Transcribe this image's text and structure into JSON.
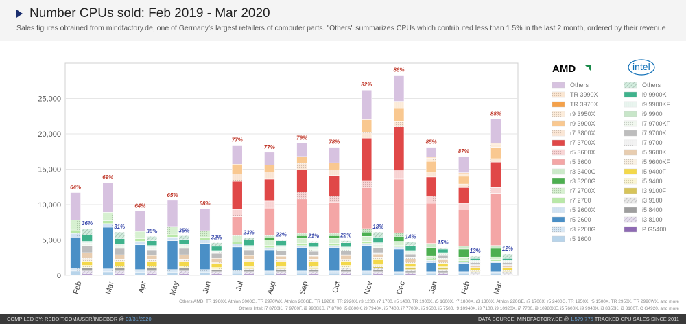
{
  "header": {
    "title": "Number CPUs sold: Feb 2019 - Mar 2020",
    "subtitle": "Sales figures obtained from mindfactory.de, one of Germany's largest retailers of computer parts. \"Others\" summarizes CPUs which contributed less than 1.5% in the last 2 month, ordered by their revenue"
  },
  "colors": {
    "amd_share": "#c0392b",
    "intel_share": "#3949ab"
  },
  "chart_data": {
    "type": "bar",
    "stacked": true,
    "grouped": [
      "AMD",
      "Intel"
    ],
    "ylim": [
      0,
      30000
    ],
    "yticks": [
      0,
      5000,
      10000,
      15000,
      20000,
      25000
    ],
    "ytick_labels": [
      "0",
      "5,000",
      "10,000",
      "15,000",
      "20,000",
      "25,000"
    ],
    "grid": true,
    "categories": [
      "Feb",
      "Mar",
      "Apr",
      "May",
      "Jun",
      "Jul",
      "Aug",
      "Sep",
      "Oct",
      "Nov",
      "Dec",
      "Jan",
      "Feb",
      "Mar"
    ],
    "amd_totals": [
      11700,
      13100,
      9500,
      10600,
      9400,
      18400,
      17100,
      18700,
      18100,
      25900,
      28300,
      22100,
      18100,
      21300
    ],
    "intel_totals": [
      6300,
      5900,
      5200,
      5600,
      4400,
      5300,
      5000,
      4800,
      4900,
      5700,
      4600,
      3800,
      2700,
      2900
    ],
    "amd_share_labels": [
      "64%",
      "69%",
      "64%",
      "65%",
      "68%",
      "77%",
      "77%",
      "79%",
      "78%",
      "82%",
      "86%",
      "85%",
      "87%",
      "88%"
    ],
    "intel_share_labels": [
      "36%",
      "31%",
      "36%",
      "35%",
      "32%",
      "23%",
      "23%",
      "21%",
      "22%",
      "18%",
      "14%",
      "15%",
      "13%",
      "12%"
    ],
    "amd_series": [
      {
        "name": "r5 1600",
        "color": "#b8d4ea",
        "pattern": "solid",
        "values": [
          600,
          500,
          400,
          400,
          400,
          300,
          300,
          300,
          300,
          300,
          300,
          300,
          300,
          300
        ]
      },
      {
        "name": "r3 2200G",
        "color": "#a8cbe8",
        "pattern": "dots",
        "values": [
          400,
          400,
          400,
          400,
          400,
          400,
          300,
          300,
          300,
          300,
          200,
          200,
          200,
          200
        ]
      },
      {
        "name": "r5 2600",
        "color": "#4a8fc6",
        "pattern": "solid",
        "values": [
          4300,
          5900,
          3500,
          4100,
          3700,
          3300,
          3000,
          3300,
          3300,
          3600,
          3200,
          1300,
          1200,
          1300
        ]
      },
      {
        "name": "r5 2600X",
        "color": "#9bc1e4",
        "pattern": "dots",
        "values": [
          600,
          500,
          500,
          500,
          500,
          400,
          300,
          300,
          300,
          300,
          300,
          300,
          200,
          200
        ]
      },
      {
        "name": "r7 2700",
        "color": "#b9e8a8",
        "pattern": "solid",
        "values": [
          500,
          400,
          400,
          400,
          400,
          300,
          300,
          300,
          300,
          300,
          200,
          200,
          200,
          200
        ]
      },
      {
        "name": "r7 2700X",
        "color": "#a6e09a",
        "pattern": "dots",
        "values": [
          1400,
          1200,
          1000,
          1100,
          900,
          900,
          800,
          700,
          700,
          700,
          600,
          400,
          400,
          400
        ]
      },
      {
        "name": "r3 3200G",
        "color": "#4caf50",
        "pattern": "solid",
        "values": [
          0,
          0,
          0,
          0,
          0,
          0,
          300,
          400,
          400,
          600,
          700,
          1200,
          1200,
          1200
        ]
      },
      {
        "name": "r3 3400G",
        "color": "#8fd18a",
        "pattern": "dots",
        "values": [
          0,
          0,
          0,
          0,
          0,
          0,
          300,
          300,
          300,
          500,
          500,
          600,
          400,
          400
        ]
      },
      {
        "name": "r5 3600",
        "color": "#f4a6a6",
        "pattern": "solid",
        "values": [
          0,
          0,
          0,
          0,
          0,
          2700,
          3900,
          4900,
          4400,
          5800,
          7600,
          5700,
          5200,
          7400
        ]
      },
      {
        "name": "r5 3600X",
        "color": "#f2a1a1",
        "pattern": "dots",
        "values": [
          0,
          0,
          0,
          0,
          0,
          1000,
          1000,
          1000,
          900,
          1000,
          1200,
          1000,
          900,
          800
        ]
      },
      {
        "name": "r7 3700X",
        "color": "#e04848",
        "pattern": "solid",
        "values": [
          0,
          0,
          0,
          0,
          0,
          4000,
          3100,
          3100,
          2900,
          6000,
          6200,
          2700,
          2200,
          3600
        ]
      },
      {
        "name": "r7 3800X",
        "color": "#f7c9a4",
        "pattern": "dots",
        "values": [
          0,
          0,
          0,
          0,
          0,
          1000,
          1000,
          900,
          800,
          800,
          800,
          600,
          500,
          500
        ]
      },
      {
        "name": "r9 3900X",
        "color": "#f9c890",
        "pattern": "solid",
        "values": [
          0,
          0,
          0,
          0,
          0,
          1400,
          1000,
          1000,
          1000,
          1800,
          1800,
          1600,
          1100,
          1600
        ]
      },
      {
        "name": "r9 3950X",
        "color": "#fad6b0",
        "pattern": "dots",
        "values": [
          0,
          0,
          0,
          0,
          0,
          0,
          0,
          0,
          0,
          0,
          900,
          500,
          400,
          400
        ]
      },
      {
        "name": "TR 3970X",
        "color": "#f4a14a",
        "pattern": "solid",
        "values": [
          0,
          0,
          0,
          0,
          0,
          0,
          0,
          0,
          0,
          0,
          100,
          100,
          100,
          100
        ]
      },
      {
        "name": "TR 3990X",
        "color": "#f8c99c",
        "pattern": "dots",
        "values": [
          0,
          0,
          0,
          0,
          0,
          0,
          0,
          0,
          0,
          0,
          0,
          0,
          0,
          100
        ]
      },
      {
        "name": "Others",
        "color": "#d7c2e0",
        "pattern": "solid",
        "values": [
          3900,
          4200,
          2900,
          3700,
          3100,
          2700,
          1800,
          1900,
          2200,
          4200,
          3700,
          1400,
          2300,
          3400
        ]
      }
    ],
    "intel_series": [
      {
        "name": "P G5400",
        "color": "#8e6ab3",
        "pattern": "solid",
        "values": [
          200,
          200,
          200,
          200,
          200,
          200,
          200,
          200,
          200,
          200,
          200,
          200,
          100,
          100
        ]
      },
      {
        "name": "i3 8100",
        "color": "#c7b7da",
        "pattern": "hatch",
        "values": [
          400,
          400,
          400,
          400,
          300,
          300,
          300,
          300,
          300,
          300,
          200,
          200,
          100,
          100
        ]
      },
      {
        "name": "i5 8400",
        "color": "#9e9e9e",
        "pattern": "solid",
        "values": [
          500,
          400,
          400,
          400,
          300,
          300,
          300,
          300,
          300,
          300,
          200,
          200,
          100,
          100
        ]
      },
      {
        "name": "i3 9100",
        "color": "#cfcfcf",
        "pattern": "hatch",
        "values": [
          0,
          0,
          0,
          0,
          0,
          100,
          100,
          100,
          200,
          200,
          200,
          200,
          200,
          200
        ]
      },
      {
        "name": "i3 9100F",
        "color": "#d7c45a",
        "pattern": "solid",
        "values": [
          0,
          0,
          0,
          0,
          0,
          100,
          100,
          100,
          100,
          200,
          200,
          200,
          100,
          100
        ]
      },
      {
        "name": "i5 9400",
        "color": "#f5e9a0",
        "pattern": "dots",
        "values": [
          300,
          300,
          300,
          300,
          300,
          300,
          300,
          300,
          300,
          300,
          200,
          200,
          100,
          100
        ]
      },
      {
        "name": "i5 9400F",
        "color": "#f3d84a",
        "pattern": "solid",
        "values": [
          600,
          600,
          600,
          600,
          500,
          600,
          600,
          600,
          600,
          700,
          500,
          500,
          300,
          300
        ]
      },
      {
        "name": "i5 9600KF",
        "color": "#f1dfc4",
        "pattern": "dots",
        "values": [
          400,
          300,
          300,
          300,
          300,
          300,
          300,
          300,
          300,
          300,
          200,
          200,
          100,
          100
        ]
      },
      {
        "name": "i5 9600K",
        "color": "#e8cdb0",
        "pattern": "solid",
        "values": [
          800,
          700,
          600,
          700,
          500,
          600,
          500,
          500,
          500,
          500,
          400,
          300,
          200,
          200
        ]
      },
      {
        "name": "i7 9700",
        "color": "#e5e5e5",
        "pattern": "dots",
        "values": [
          0,
          0,
          0,
          0,
          0,
          0,
          100,
          100,
          100,
          200,
          200,
          200,
          200,
          200
        ]
      },
      {
        "name": "i7 9700K",
        "color": "#bdbdbd",
        "pattern": "solid",
        "values": [
          1000,
          900,
          800,
          900,
          700,
          800,
          700,
          600,
          600,
          700,
          500,
          400,
          300,
          300
        ]
      },
      {
        "name": "i7 9700KF",
        "color": "#e0f0dc",
        "pattern": "dots",
        "values": [
          300,
          300,
          300,
          300,
          200,
          300,
          300,
          300,
          200,
          300,
          200,
          200,
          100,
          100
        ]
      },
      {
        "name": "i9 9900",
        "color": "#c8e6c9",
        "pattern": "solid",
        "values": [
          0,
          0,
          0,
          0,
          0,
          0,
          100,
          100,
          100,
          100,
          100,
          100,
          100,
          100
        ]
      },
      {
        "name": "i9 9900KF",
        "color": "#cfe9dc",
        "pattern": "dots",
        "values": [
          300,
          300,
          300,
          300,
          200,
          300,
          300,
          200,
          200,
          300,
          200,
          100,
          100,
          100
        ]
      },
      {
        "name": "i9 9900K",
        "color": "#3fb28c",
        "pattern": "solid",
        "values": [
          900,
          800,
          700,
          700,
          600,
          800,
          700,
          600,
          600,
          800,
          700,
          500,
          300,
          300
        ]
      },
      {
        "name": "Others",
        "color": "#9ed8b8",
        "pattern": "hatch",
        "values": [
          900,
          900,
          600,
          500,
          500,
          300,
          100,
          200,
          300,
          700,
          500,
          200,
          300,
          600
        ]
      }
    ],
    "legend_amd_title": "AMD",
    "legend_intel_title": "intel",
    "legend_amd_order": [
      "Others",
      "TR 3990X",
      "TR 3970X",
      "r9 3950X",
      "r9 3900X",
      "r7 3800X",
      "r7 3700X",
      "r5 3600X",
      "r5 3600",
      "r3 3400G",
      "r3 3200G",
      "r7 2700X",
      "r7 2700",
      "r5 2600X",
      "r5 2600",
      "r3 2200G",
      "r5 1600"
    ],
    "legend_intel_order": [
      "Others",
      "i9 9900K",
      "i9 9900KF",
      "i9 9900",
      "i7 9700KF",
      "i7 9700K",
      "i7 9700",
      "i5 9600K",
      "i5 9600KF",
      "i5 9400F",
      "i5 9400",
      "i3 9100F",
      "i3 9100",
      "i5 8400",
      "i3 8100",
      "P G5400"
    ],
    "legend_placement": "right"
  },
  "notes": {
    "amd": "Others AMD: TR 1960X, Athlon 3000G, TR 2970WX, Athlon 200GE, TR 1920X, TR 2920X, r3 1200, r7 1700, r5 1400, TR 1900X, r5 1600X, r7 1800X, r3 1300X, Athlon 220GE, r7 1700X, r5 2400G, TR 1950X, r5 1500X, TR 2950X, TR 2990WX, and more",
    "intel": "Others Intel: i7 8700K, i7 9700F, i9 9900KS, i7 8700, i5 8600K, i9 7940X, i5 7400, i7 7700K, i5 9500, i5 7500, i9 10940X, i3 7100, i9 10920X, i7 7700, i9 10980XE, i5 7600K, i9 9940X, i3 8350K, i3 8100T, C G4920, and more"
  },
  "footer": {
    "compiled_prefix": "COMPILED BY: REDDIT.COM/USER/INGEBOR @",
    "compiled_date": "03/31/2020",
    "source_prefix": "DATA SOURCE: MINDFACTORY.DE @",
    "source_count": "1,579,775",
    "source_suffix": "TRACKED CPU SALES SINCE 2011"
  }
}
